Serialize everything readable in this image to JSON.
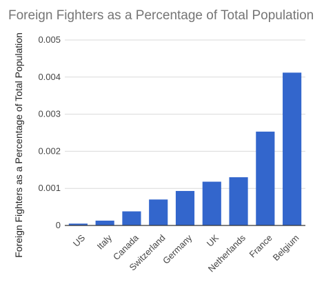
{
  "chart_data": {
    "type": "bar",
    "title": "Foreign Fighters as a Percentage of Total Population",
    "xlabel": "",
    "ylabel": "Foreign Fighters as a Percentage of Total Population",
    "categories": [
      "US",
      "Italy",
      "Canada",
      "Switzerland",
      "Germany",
      "UK",
      "Netherlands",
      "France",
      "Belgium"
    ],
    "values": [
      5e-05,
      0.00013,
      0.00038,
      0.0007,
      0.00093,
      0.00118,
      0.0013,
      0.00253,
      0.00412
    ],
    "ylim": [
      0,
      0.005
    ],
    "yticks": [
      "0",
      "0.001",
      "0.002",
      "0.003",
      "0.004",
      "0.005"
    ],
    "ytick_values": [
      0,
      0.001,
      0.002,
      0.003,
      0.004,
      0.005
    ],
    "grid": true,
    "bar_color": "#3366cc",
    "grid_color": "#d9d9d9",
    "axis_color": "#333333"
  }
}
